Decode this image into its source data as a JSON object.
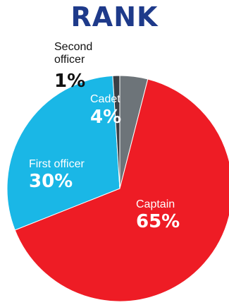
{
  "colors": {
    "title": "#1e3a8a",
    "captain": "#ee1c25",
    "first_officer": "#1ab7e6",
    "second_officer": "#3a3f45",
    "cadet": "#6d7479",
    "label_light": "#ffffff",
    "label_dark": "#111111",
    "slice_border": "#ffffff"
  },
  "chart_data": {
    "type": "pie",
    "title": "RANK",
    "slices": [
      {
        "key": "cadet",
        "name": "Cadet",
        "value": 4,
        "display": "4%",
        "color": "#6d7479"
      },
      {
        "key": "captain",
        "name": "Captain",
        "value": 65,
        "display": "65%",
        "color": "#ee1c25"
      },
      {
        "key": "first_officer",
        "name": "First officer",
        "value": 30,
        "display": "30%",
        "color": "#1ab7e6"
      },
      {
        "key": "second_officer",
        "name": "Second officer",
        "name_lines": [
          "Second",
          "officer"
        ],
        "value": 1,
        "display": "1%",
        "color": "#3a3f45"
      }
    ]
  }
}
